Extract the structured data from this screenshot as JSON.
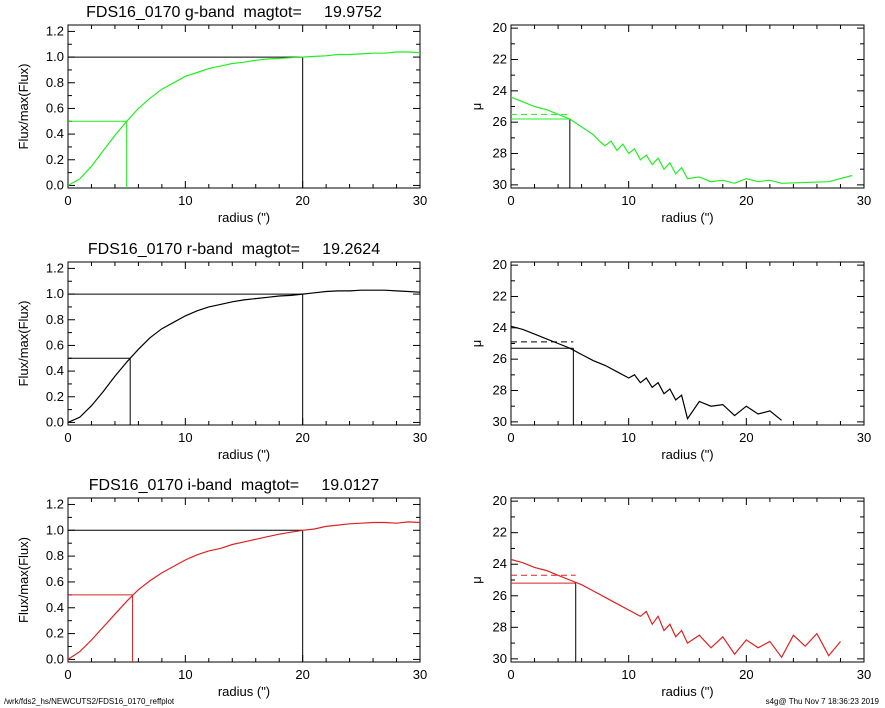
{
  "footer": {
    "left": "/wrk/fds2_hs/NEWCUTS2/FDS16_0170_reffplot",
    "right": "s4g@  Thu Nov  7 18:36:23 2019"
  },
  "colors": {
    "g": "#22ee22",
    "r": "#000000",
    "i": "#dd2222",
    "frame": "#000000"
  },
  "chart_data": [
    {
      "type": "line",
      "title": "FDS16_0170 g-band  magtot=     19.9752",
      "xlabel": "radius (\")",
      "ylabel": "Flux/max(Flux)",
      "xlim": [
        0,
        30
      ],
      "ylim": [
        -0.02,
        1.25
      ],
      "xticks": [
        0,
        10,
        20,
        30
      ],
      "yticks": [
        0.0,
        0.2,
        0.4,
        0.6,
        0.8,
        1.0,
        1.2
      ],
      "ytick_labels": [
        "0.0",
        "0.2",
        "0.4",
        "0.6",
        "0.8",
        "1.0",
        "1.2"
      ],
      "series": [
        {
          "color": "#22ee22",
          "x": [
            0,
            1,
            2,
            3,
            4,
            5,
            6,
            7,
            8,
            9,
            10,
            11,
            12,
            13,
            14,
            15,
            16,
            17,
            18,
            19,
            20,
            21,
            22,
            23,
            24,
            25,
            26,
            27,
            28,
            29,
            30
          ],
          "y": [
            0,
            0.05,
            0.15,
            0.27,
            0.39,
            0.5,
            0.6,
            0.68,
            0.75,
            0.8,
            0.85,
            0.88,
            0.91,
            0.93,
            0.95,
            0.96,
            0.975,
            0.985,
            0.99,
            0.995,
            1.0,
            1.005,
            1.01,
            1.02,
            1.02,
            1.025,
            1.03,
            1.03,
            1.04,
            1.04,
            1.035
          ]
        }
      ],
      "markers": {
        "half_x": 5.0,
        "half_y": 0.5,
        "full_x": 20.0,
        "full_y": 1.0
      }
    },
    {
      "type": "line",
      "title": "",
      "xlabel": "radius (\")",
      "ylabel": "μ",
      "xlim": [
        0,
        30
      ],
      "ylim": [
        30.2,
        19.8
      ],
      "xticks": [
        0,
        10,
        20,
        30
      ],
      "yticks": [
        20,
        22,
        24,
        26,
        28,
        30
      ],
      "ytick_labels": [
        "20",
        "22",
        "24",
        "26",
        "28",
        "30"
      ],
      "series": [
        {
          "color": "#22ee22",
          "x": [
            0,
            1,
            2,
            3,
            4,
            5,
            6,
            7,
            7.5,
            8,
            8.5,
            9,
            9.5,
            10,
            10.5,
            11,
            11.5,
            12,
            12.5,
            13,
            13.5,
            14,
            14.5,
            15,
            16,
            17,
            18,
            19,
            20,
            21,
            22,
            23,
            27,
            29
          ],
          "y": [
            24.4,
            24.7,
            25.0,
            25.2,
            25.5,
            25.8,
            26.3,
            26.8,
            27.2,
            27.5,
            27.2,
            27.8,
            27.4,
            28.0,
            27.7,
            28.4,
            28.1,
            28.7,
            28.3,
            29.0,
            28.6,
            29.3,
            28.9,
            29.6,
            29.5,
            29.8,
            29.7,
            29.9,
            29.6,
            29.8,
            29.7,
            29.9,
            29.8,
            29.4
          ]
        }
      ],
      "markers": {
        "mu_e": 25.8,
        "mu_e_mean": 25.5,
        "r_e": 5.0
      }
    },
    {
      "type": "line",
      "title": "FDS16_0170 r-band  magtot=     19.2624",
      "xlabel": "radius (\")",
      "ylabel": "Flux/max(Flux)",
      "xlim": [
        0,
        30
      ],
      "ylim": [
        -0.02,
        1.25
      ],
      "xticks": [
        0,
        10,
        20,
        30
      ],
      "yticks": [
        0.0,
        0.2,
        0.4,
        0.6,
        0.8,
        1.0,
        1.2
      ],
      "ytick_labels": [
        "0.0",
        "0.2",
        "0.4",
        "0.6",
        "0.8",
        "1.0",
        "1.2"
      ],
      "series": [
        {
          "color": "#000000",
          "x": [
            0,
            1,
            2,
            3,
            4,
            5,
            6,
            7,
            8,
            9,
            10,
            11,
            12,
            13,
            14,
            15,
            16,
            17,
            18,
            19,
            20,
            21,
            22,
            23,
            24,
            25,
            26,
            27,
            28,
            29,
            30
          ],
          "y": [
            0,
            0.04,
            0.13,
            0.24,
            0.36,
            0.47,
            0.57,
            0.66,
            0.73,
            0.78,
            0.83,
            0.87,
            0.9,
            0.92,
            0.94,
            0.955,
            0.965,
            0.975,
            0.985,
            0.99,
            1.0,
            1.01,
            1.02,
            1.025,
            1.025,
            1.03,
            1.03,
            1.03,
            1.025,
            1.02,
            1.015
          ]
        }
      ],
      "markers": {
        "half_x": 5.3,
        "half_y": 0.5,
        "full_x": 20.0,
        "full_y": 1.0
      }
    },
    {
      "type": "line",
      "title": "",
      "xlabel": "radius (\")",
      "ylabel": "μ",
      "xlim": [
        0,
        30
      ],
      "ylim": [
        30.2,
        19.8
      ],
      "xticks": [
        0,
        10,
        20,
        30
      ],
      "yticks": [
        20,
        22,
        24,
        26,
        28,
        30
      ],
      "ytick_labels": [
        "20",
        "22",
        "24",
        "26",
        "28",
        "30"
      ],
      "series": [
        {
          "color": "#000000",
          "x": [
            0,
            1,
            2,
            3,
            4,
            5,
            6,
            7,
            8,
            9,
            10,
            10.5,
            11,
            11.5,
            12,
            12.5,
            13,
            13.5,
            14,
            14.5,
            15,
            16,
            17,
            18,
            19,
            20,
            21,
            22,
            23
          ],
          "y": [
            23.9,
            24.1,
            24.4,
            24.7,
            25.0,
            25.3,
            25.7,
            26.1,
            26.4,
            26.8,
            27.2,
            27.0,
            27.5,
            27.2,
            27.8,
            27.5,
            28.2,
            27.9,
            28.6,
            28.3,
            29.8,
            28.7,
            29.0,
            28.9,
            29.6,
            29.0,
            29.5,
            29.3,
            29.9
          ]
        }
      ],
      "markers": {
        "mu_e": 25.3,
        "mu_e_mean": 24.9,
        "r_e": 5.3
      }
    },
    {
      "type": "line",
      "title": "FDS16_0170 i-band  magtot=     19.0127",
      "xlabel": "radius (\")",
      "ylabel": "Flux/max(Flux)",
      "xlim": [
        0,
        30
      ],
      "ylim": [
        -0.02,
        1.25
      ],
      "xticks": [
        0,
        10,
        20,
        30
      ],
      "yticks": [
        0.0,
        0.2,
        0.4,
        0.6,
        0.8,
        1.0,
        1.2
      ],
      "ytick_labels": [
        "0.0",
        "0.2",
        "0.4",
        "0.6",
        "0.8",
        "1.0",
        "1.2"
      ],
      "series": [
        {
          "color": "#dd2222",
          "x": [
            0,
            1,
            2,
            3,
            4,
            5,
            6,
            7,
            8,
            9,
            10,
            11,
            12,
            13,
            14,
            15,
            16,
            17,
            18,
            19,
            20,
            21,
            22,
            23,
            24,
            25,
            26,
            27,
            28,
            29,
            30
          ],
          "y": [
            0,
            0.06,
            0.15,
            0.25,
            0.35,
            0.45,
            0.54,
            0.61,
            0.67,
            0.72,
            0.77,
            0.81,
            0.84,
            0.86,
            0.89,
            0.91,
            0.93,
            0.95,
            0.97,
            0.985,
            1.0,
            1.01,
            1.03,
            1.04,
            1.05,
            1.055,
            1.06,
            1.06,
            1.055,
            1.065,
            1.06
          ]
        }
      ],
      "markers": {
        "half_x": 5.5,
        "half_y": 0.5,
        "full_x": 20.0,
        "full_y": 1.0
      }
    },
    {
      "type": "line",
      "title": "",
      "xlabel": "radius (\")",
      "ylabel": "μ",
      "xlim": [
        0,
        30
      ],
      "ylim": [
        30.2,
        19.8
      ],
      "xticks": [
        0,
        10,
        20,
        30
      ],
      "yticks": [
        20,
        22,
        24,
        26,
        28,
        30
      ],
      "ytick_labels": [
        "20",
        "22",
        "24",
        "26",
        "28",
        "30"
      ],
      "series": [
        {
          "color": "#dd2222",
          "x": [
            0,
            1,
            2,
            3,
            4,
            5,
            6,
            7,
            8,
            9,
            10,
            11,
            11.5,
            12,
            12.5,
            13,
            13.5,
            14,
            14.5,
            15,
            16,
            17,
            18,
            19,
            20,
            21,
            22,
            23,
            24,
            25,
            26,
            27,
            28
          ],
          "y": [
            23.7,
            23.9,
            24.2,
            24.4,
            24.7,
            25.0,
            25.3,
            25.7,
            26.1,
            26.5,
            26.9,
            27.3,
            27.0,
            27.8,
            27.3,
            28.2,
            27.8,
            28.6,
            28.2,
            29.0,
            28.5,
            29.3,
            28.6,
            29.7,
            28.8,
            29.3,
            28.9,
            29.9,
            28.5,
            29.2,
            28.4,
            29.8,
            28.9
          ]
        }
      ],
      "markers": {
        "mu_e": 25.2,
        "mu_e_mean": 24.7,
        "r_e": 5.5
      }
    }
  ]
}
